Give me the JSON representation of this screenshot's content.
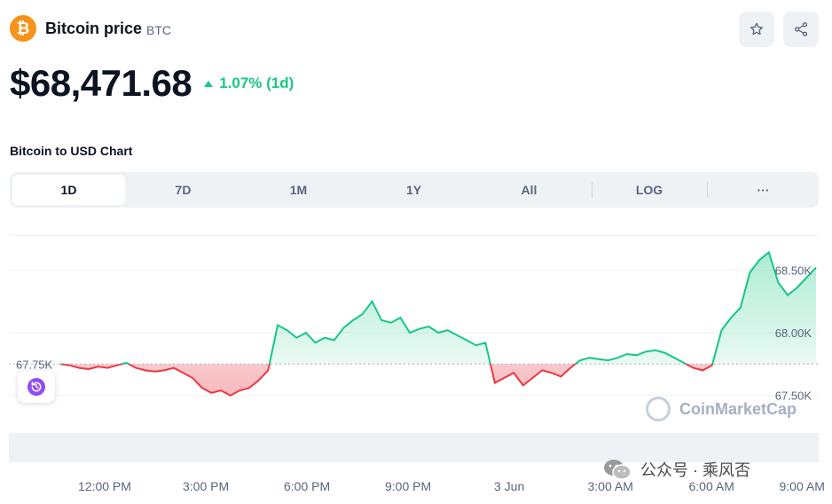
{
  "header": {
    "coin_icon_glyph": "₿",
    "coin_name": "Bitcoin price",
    "coin_symbol": "BTC",
    "favorite_icon": "star-icon",
    "share_icon": "share-icon"
  },
  "price": {
    "value": "$68,471.68",
    "change": "1.07% (1d)",
    "change_direction": "up",
    "up_color": "#16c784",
    "down_color": "#ea3943"
  },
  "chart_title": "Bitcoin to USD Chart",
  "tabs": [
    {
      "label": "1D",
      "active": true
    },
    {
      "label": "7D",
      "active": false
    },
    {
      "label": "1M",
      "active": false
    },
    {
      "label": "1Y",
      "active": false
    },
    {
      "label": "All",
      "active": false
    },
    {
      "label": "LOG",
      "active": false
    },
    {
      "label": "···",
      "active": false
    }
  ],
  "watermark": "CoinMarketCap",
  "wechat_label": "公众号 · 乘风否",
  "chart_data": {
    "type": "line",
    "baseline": 67750,
    "baseline_label": "67.75K",
    "yticks": [
      {
        "value": 68500,
        "label": "68.50K"
      },
      {
        "value": 68000,
        "label": "68.00K"
      },
      {
        "value": 67500,
        "label": "67.50K"
      }
    ],
    "xlabels": [
      "12:00 PM",
      "3:00 PM",
      "6:00 PM",
      "9:00 PM",
      "3 Jun",
      "3:00 AM",
      "6:00 AM",
      "9:00 AM"
    ],
    "x": [
      0,
      0.3,
      0.6,
      0.9,
      1.2,
      1.5,
      1.8,
      2.1,
      2.4,
      2.7,
      3.0,
      3.3,
      3.6,
      3.9,
      4.2,
      4.5,
      4.8,
      5.1,
      5.4,
      5.7,
      6.0,
      6.3,
      6.6,
      6.9,
      7.2,
      7.5,
      7.8,
      8.1,
      8.4,
      8.7,
      9.0,
      9.3,
      9.6,
      9.9,
      10.2,
      10.5,
      10.8,
      11.1,
      11.4,
      11.7,
      12.0,
      12.3,
      12.6,
      12.9,
      13.2,
      13.5,
      13.8,
      14.1,
      14.4,
      14.7,
      15.0,
      15.3,
      15.6,
      15.9,
      16.2,
      16.5,
      16.8,
      17.1,
      17.4,
      17.7,
      18.0,
      18.3,
      18.6,
      18.9,
      19.2,
      19.5,
      19.8,
      20.1,
      20.4,
      20.7,
      21.0,
      21.3,
      21.6,
      21.9,
      22.2,
      22.5,
      22.8,
      23.1,
      23.4,
      23.7,
      24.0
    ],
    "values": [
      67750,
      67740,
      67720,
      67710,
      67730,
      67720,
      67740,
      67760,
      67720,
      67700,
      67690,
      67700,
      67720,
      67680,
      67640,
      67560,
      67520,
      67540,
      67500,
      67540,
      67560,
      67620,
      67700,
      68060,
      68020,
      67960,
      68000,
      67920,
      67960,
      67940,
      68040,
      68100,
      68150,
      68250,
      68100,
      68080,
      68120,
      68000,
      68030,
      68050,
      68000,
      68020,
      67980,
      67940,
      67900,
      67920,
      67600,
      67640,
      67680,
      67580,
      67640,
      67700,
      67680,
      67650,
      67720,
      67780,
      67800,
      67790,
      67780,
      67800,
      67830,
      67820,
      67850,
      67860,
      67840,
      67800,
      67760,
      67720,
      67700,
      67740,
      68020,
      68120,
      68200,
      68480,
      68580,
      68640,
      68400,
      68300,
      68360,
      68440,
      68520
    ],
    "title": "Bitcoin to USD Chart",
    "xlabel": "",
    "ylabel": "",
    "ylim": [
      67250,
      68700
    ],
    "grid": true,
    "legend": "none"
  }
}
